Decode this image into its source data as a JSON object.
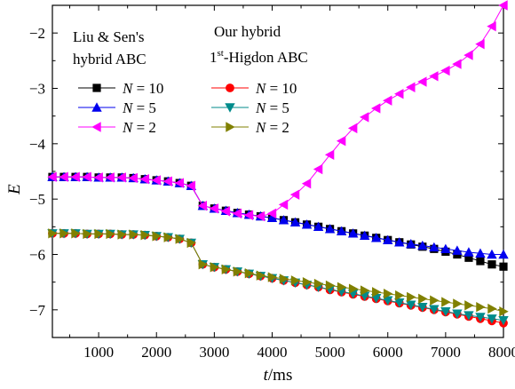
{
  "chart_data": {
    "type": "line",
    "xlabel": "t",
    "xunit": "/ms",
    "ylabel": "E",
    "xlim": [
      200,
      8000
    ],
    "ylim": [
      -7.5,
      -1.5
    ],
    "xticks": [
      1000,
      2000,
      3000,
      4000,
      5000,
      6000,
      7000,
      8000
    ],
    "yticks": [
      -2,
      -3,
      -4,
      -5,
      -6,
      -7
    ],
    "x": [
      200,
      400,
      600,
      800,
      1000,
      1200,
      1400,
      1600,
      1800,
      2000,
      2200,
      2400,
      2600,
      2800,
      3000,
      3200,
      3400,
      3600,
      3800,
      4000,
      4200,
      4400,
      4600,
      4800,
      5000,
      5200,
      5400,
      5600,
      5800,
      6000,
      6200,
      6400,
      6600,
      6800,
      7000,
      7200,
      7400,
      7600,
      7800,
      8000
    ],
    "legend_groups": [
      {
        "title": "Liu & Sen's hybrid ABC",
        "title_lines": [
          "Liu & Sen's",
          "hybrid ABC"
        ],
        "series": [
          {
            "name": "N = 10",
            "name_var": "N",
            "name_val": "= 10",
            "color": "#000000",
            "marker": "square",
            "values": [
              -4.6,
              -4.6,
              -4.6,
              -4.6,
              -4.61,
              -4.61,
              -4.61,
              -4.62,
              -4.64,
              -4.66,
              -4.68,
              -4.71,
              -4.76,
              -5.12,
              -5.17,
              -5.21,
              -5.25,
              -5.28,
              -5.31,
              -5.34,
              -5.38,
              -5.42,
              -5.46,
              -5.5,
              -5.54,
              -5.58,
              -5.62,
              -5.66,
              -5.7,
              -5.74,
              -5.78,
              -5.82,
              -5.86,
              -5.9,
              -5.95,
              -6.0,
              -6.06,
              -6.12,
              -6.18,
              -6.22
            ]
          },
          {
            "name": "N = 5",
            "name_var": "N",
            "name_val": "= 5",
            "color": "#0000ee",
            "marker": "triangle-up",
            "values": [
              -4.6,
              -4.6,
              -4.6,
              -4.6,
              -4.61,
              -4.61,
              -4.61,
              -4.62,
              -4.64,
              -4.66,
              -4.68,
              -4.71,
              -4.76,
              -5.12,
              -5.17,
              -5.21,
              -5.25,
              -5.28,
              -5.31,
              -5.34,
              -5.38,
              -5.42,
              -5.46,
              -5.5,
              -5.54,
              -5.58,
              -5.62,
              -5.66,
              -5.7,
              -5.74,
              -5.78,
              -5.81,
              -5.84,
              -5.87,
              -5.9,
              -5.93,
              -5.96,
              -5.98,
              -6.0,
              -6.0
            ]
          },
          {
            "name": "N = 2",
            "name_var": "N",
            "name_val": "= 2",
            "color": "#ff00ff",
            "marker": "triangle-left",
            "values": [
              -4.6,
              -4.6,
              -4.6,
              -4.6,
              -4.61,
              -4.61,
              -4.61,
              -4.62,
              -4.64,
              -4.66,
              -4.68,
              -4.71,
              -4.76,
              -5.12,
              -5.17,
              -5.22,
              -5.26,
              -5.29,
              -5.31,
              -5.26,
              -5.1,
              -4.92,
              -4.72,
              -4.46,
              -4.2,
              -3.95,
              -3.72,
              -3.52,
              -3.36,
              -3.22,
              -3.1,
              -2.98,
              -2.88,
              -2.78,
              -2.68,
              -2.56,
              -2.4,
              -2.2,
              -1.88,
              -1.5
            ]
          }
        ]
      },
      {
        "title": "Our hybrid 1st-Higdon ABC",
        "title_lines": [
          "Our hybrid",
          "1",
          "st",
          "-Higdon ABC"
        ],
        "series": [
          {
            "name": "N = 10",
            "name_var": "N",
            "name_val": "= 10",
            "color": "#ff0000",
            "marker": "circle",
            "values": [
              -5.62,
              -5.62,
              -5.62,
              -5.63,
              -5.63,
              -5.63,
              -5.64,
              -5.64,
              -5.65,
              -5.67,
              -5.69,
              -5.72,
              -5.79,
              -6.18,
              -6.23,
              -6.27,
              -6.31,
              -6.35,
              -6.39,
              -6.43,
              -6.47,
              -6.51,
              -6.55,
              -6.59,
              -6.64,
              -6.68,
              -6.72,
              -6.76,
              -6.8,
              -6.84,
              -6.88,
              -6.92,
              -6.96,
              -7.0,
              -7.04,
              -7.08,
              -7.12,
              -7.16,
              -7.2,
              -7.24
            ]
          },
          {
            "name": "N = 5",
            "name_var": "N",
            "name_val": "= 5",
            "color": "#008b8b",
            "marker": "triangle-down",
            "values": [
              -5.62,
              -5.62,
              -5.62,
              -5.63,
              -5.63,
              -5.63,
              -5.64,
              -5.64,
              -5.65,
              -5.67,
              -5.69,
              -5.72,
              -5.79,
              -6.18,
              -6.23,
              -6.27,
              -6.31,
              -6.35,
              -6.39,
              -6.43,
              -6.47,
              -6.51,
              -6.55,
              -6.59,
              -6.63,
              -6.67,
              -6.71,
              -6.75,
              -6.79,
              -6.83,
              -6.87,
              -6.91,
              -6.95,
              -6.99,
              -7.03,
              -7.07,
              -7.1,
              -7.13,
              -7.16,
              -7.19
            ]
          },
          {
            "name": "N = 2",
            "name_var": "N",
            "name_val": "= 2",
            "color": "#808000",
            "marker": "triangle-right",
            "values": [
              -5.62,
              -5.62,
              -5.62,
              -5.63,
              -5.63,
              -5.63,
              -5.64,
              -5.64,
              -5.65,
              -5.67,
              -5.69,
              -5.72,
              -5.79,
              -6.18,
              -6.23,
              -6.27,
              -6.31,
              -6.34,
              -6.38,
              -6.41,
              -6.44,
              -6.47,
              -6.5,
              -6.53,
              -6.56,
              -6.59,
              -6.62,
              -6.65,
              -6.68,
              -6.71,
              -6.74,
              -6.77,
              -6.8,
              -6.83,
              -6.86,
              -6.89,
              -6.92,
              -6.95,
              -6.98,
              -7.03
            ]
          }
        ]
      }
    ],
    "legend_placement": "top-left",
    "grid": false
  }
}
